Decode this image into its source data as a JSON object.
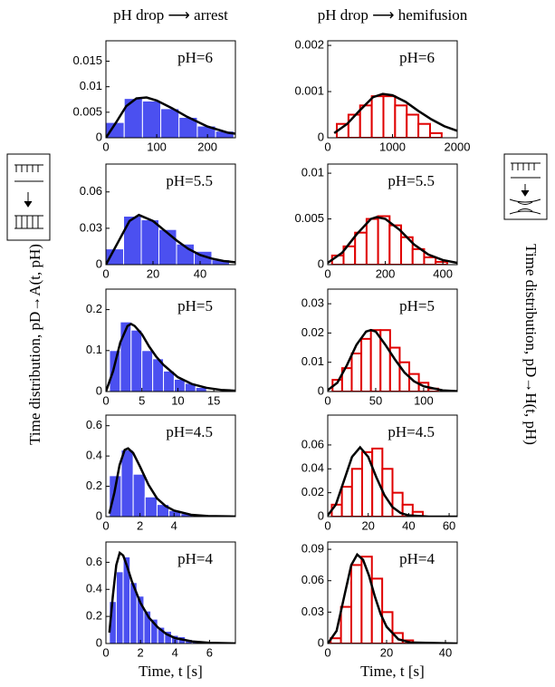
{
  "y_labels": [
    "Time distribution, pD→A(t, pH)",
    "Time distribution, pD→H(t, pH)"
  ],
  "chart_data": [
    {
      "type": "histogram",
      "title": "pH drop ⟶ arrest",
      "label": "pH=6",
      "color": "#4b50f0",
      "edge": "#ffffff",
      "bins": [
        0,
        36,
        72,
        108,
        144,
        180,
        216,
        252
      ],
      "values": [
        0.003,
        0.0077,
        0.0072,
        0.0057,
        0.004,
        0.0023,
        0.0013
      ],
      "fit_x": [
        0,
        20,
        40,
        60,
        80,
        100,
        130,
        160,
        200,
        240,
        255
      ],
      "fit_values": [
        0,
        0.003,
        0.0062,
        0.0077,
        0.0079,
        0.0073,
        0.0058,
        0.0041,
        0.0022,
        0.001,
        0.0008
      ],
      "fit_color": "#000000",
      "xlim": [
        0,
        255
      ],
      "xticks": [
        0,
        100,
        200
      ],
      "ylim": [
        0,
        0.019
      ],
      "yticks": [
        0,
        0.005,
        0.01,
        0.015
      ]
    },
    {
      "type": "histogram",
      "title": "pH drop ⟶ hemifusion",
      "label": "pH=6",
      "color": "#ffffff",
      "edge": "#e00000",
      "bins": [
        140,
        320,
        500,
        680,
        860,
        1040,
        1220,
        1400,
        1580,
        1760
      ],
      "values": [
        0.0003,
        0.0005,
        0.0007,
        0.0009,
        0.0009,
        0.0007,
        0.0005,
        0.0003,
        0.0001
      ],
      "fit_x": [
        100,
        300,
        500,
        700,
        850,
        1000,
        1200,
        1400,
        1600,
        1800,
        2000
      ],
      "fit_values": [
        0.0001,
        0.0003,
        0.0006,
        0.00088,
        0.00095,
        0.00092,
        0.00078,
        0.00058,
        0.0004,
        0.00025,
        0.00015
      ],
      "fit_color": "#000000",
      "xlim": [
        0,
        2000
      ],
      "xticks": [
        0,
        1000,
        2000
      ],
      "ylim": [
        0,
        0.0021
      ],
      "yticks": [
        0,
        0.001,
        0.002
      ]
    },
    {
      "type": "histogram",
      "label": "pH=5.5",
      "color": "#4b50f0",
      "edge": "#ffffff",
      "bins": [
        0,
        7.5,
        15,
        22.5,
        30,
        37.5,
        45,
        52.5
      ],
      "values": [
        0.013,
        0.04,
        0.037,
        0.029,
        0.017,
        0.011,
        0.004
      ],
      "fit_x": [
        0,
        5,
        10,
        14,
        20,
        25,
        30,
        35,
        40,
        45,
        50,
        55
      ],
      "fit_values": [
        0,
        0.018,
        0.036,
        0.041,
        0.036,
        0.028,
        0.02,
        0.013,
        0.008,
        0.005,
        0.003,
        0.002
      ],
      "fit_color": "#000000",
      "xlim": [
        0,
        55
      ],
      "xticks": [
        0,
        20,
        40
      ],
      "ylim": [
        0,
        0.083
      ],
      "yticks": [
        0,
        0.03,
        0.06
      ]
    },
    {
      "type": "histogram",
      "label": "pH=5.5",
      "color": "#ffffff",
      "edge": "#e00000",
      "bins": [
        15,
        55,
        95,
        135,
        175,
        215,
        255,
        295,
        335,
        375,
        415
      ],
      "values": [
        0.001,
        0.002,
        0.0035,
        0.005,
        0.0053,
        0.0043,
        0.003,
        0.0017,
        0.0008,
        0.0003
      ],
      "fit_x": [
        0,
        50,
        100,
        150,
        170,
        200,
        250,
        300,
        350,
        400,
        450
      ],
      "fit_values": [
        0.0002,
        0.0013,
        0.0033,
        0.005,
        0.0052,
        0.005,
        0.0038,
        0.0022,
        0.0011,
        0.0005,
        0.0002
      ],
      "fit_color": "#000000",
      "xlim": [
        0,
        450
      ],
      "xticks": [
        0,
        200,
        400
      ],
      "ylim": [
        0,
        0.011
      ],
      "yticks": [
        0,
        0.005,
        0.01
      ]
    },
    {
      "type": "histogram",
      "label": "pH=5",
      "color": "#4b50f0",
      "edge": "#ffffff",
      "bins": [
        0.5,
        2,
        3.5,
        5,
        6.5,
        8,
        9.5,
        11,
        12.5,
        14
      ],
      "values": [
        0.1,
        0.17,
        0.15,
        0.1,
        0.08,
        0.05,
        0.03,
        0.02,
        0.01
      ],
      "fit_x": [
        0,
        1,
        2,
        3,
        3.5,
        4,
        5,
        6,
        7,
        8,
        10,
        12,
        14,
        16,
        18
      ],
      "fit_values": [
        0,
        0.05,
        0.12,
        0.16,
        0.165,
        0.16,
        0.14,
        0.11,
        0.085,
        0.065,
        0.035,
        0.018,
        0.009,
        0.004,
        0.002
      ],
      "fit_color": "#000000",
      "xlim": [
        0,
        18
      ],
      "xticks": [
        0,
        5,
        10,
        15
      ],
      "ylim": [
        0,
        0.25
      ],
      "yticks": [
        0,
        0.1,
        0.2
      ]
    },
    {
      "type": "histogram",
      "label": "pH=5",
      "color": "#ffffff",
      "edge": "#e00000",
      "bins": [
        5,
        15,
        25,
        35,
        45,
        55,
        65,
        75,
        85,
        95,
        105,
        115
      ],
      "values": [
        0.004,
        0.008,
        0.013,
        0.018,
        0.021,
        0.021,
        0.015,
        0.01,
        0.006,
        0.003,
        0.001
      ],
      "fit_x": [
        0,
        10,
        20,
        30,
        40,
        45,
        50,
        60,
        70,
        80,
        90,
        100,
        120,
        135
      ],
      "fit_values": [
        0.0005,
        0.003,
        0.009,
        0.016,
        0.0205,
        0.021,
        0.0205,
        0.016,
        0.011,
        0.0065,
        0.0035,
        0.0018,
        0.0004,
        0.0001
      ],
      "fit_color": "#000000",
      "xlim": [
        0,
        135
      ],
      "xticks": [
        0,
        50,
        100
      ],
      "ylim": [
        0,
        0.035
      ],
      "yticks": [
        0,
        0.01,
        0.02,
        0.03
      ]
    },
    {
      "type": "histogram",
      "label": "pH=4.5",
      "color": "#4b50f0",
      "edge": "#ffffff",
      "bins": [
        0.2,
        0.9,
        1.6,
        2.3,
        3.0,
        3.7,
        4.4,
        5.1
      ],
      "values": [
        0.27,
        0.44,
        0.28,
        0.13,
        0.08,
        0.04,
        0.02
      ],
      "fit_x": [
        0.2,
        0.5,
        0.8,
        1.1,
        1.3,
        1.6,
        2,
        2.5,
        3,
        3.5,
        4,
        5,
        6,
        7.6
      ],
      "fit_values": [
        0.02,
        0.16,
        0.34,
        0.44,
        0.45,
        0.42,
        0.33,
        0.21,
        0.12,
        0.07,
        0.04,
        0.012,
        0.004,
        0.001
      ],
      "fit_color": "#000000",
      "xlim": [
        0,
        7.6
      ],
      "xticks": [
        0,
        2,
        4
      ],
      "ylim": [
        0,
        0.67
      ],
      "yticks": [
        0,
        0.2,
        0.4,
        0.6
      ]
    },
    {
      "type": "histogram",
      "label": "pH=4.5",
      "color": "#ffffff",
      "edge": "#e00000",
      "bins": [
        2,
        7,
        12,
        17,
        22,
        27,
        32,
        37,
        42,
        47
      ],
      "values": [
        0.01,
        0.025,
        0.04,
        0.054,
        0.057,
        0.04,
        0.02,
        0.01,
        0.004
      ],
      "fit_x": [
        0,
        4,
        8,
        12,
        16,
        20,
        24,
        28,
        32,
        36,
        40,
        50,
        64
      ],
      "fit_values": [
        0.001,
        0.01,
        0.03,
        0.05,
        0.058,
        0.05,
        0.033,
        0.018,
        0.008,
        0.003,
        0.001,
        0,
        0
      ],
      "fit_color": "#000000",
      "xlim": [
        0,
        64
      ],
      "xticks": [
        0,
        20,
        40,
        60
      ],
      "ylim": [
        0,
        0.085
      ],
      "yticks": [
        0,
        0.02,
        0.04,
        0.06
      ]
    },
    {
      "type": "histogram",
      "label": "pH=4",
      "xlabel": "Time, t [s]",
      "color": "#4b50f0",
      "edge": "#ffffff",
      "bins": [
        0.2,
        0.6,
        1.0,
        1.4,
        1.8,
        2.2,
        2.6,
        3.0,
        3.4,
        3.8,
        4.2,
        4.6,
        5.0,
        5.4,
        5.8
      ],
      "values": [
        0.31,
        0.53,
        0.64,
        0.45,
        0.35,
        0.24,
        0.18,
        0.12,
        0.09,
        0.06,
        0.05,
        0.03,
        0.02,
        0.01
      ],
      "fit_x": [
        0.2,
        0.4,
        0.6,
        0.8,
        1,
        1.2,
        1.5,
        2,
        2.5,
        3,
        3.5,
        4,
        5,
        6,
        7.5
      ],
      "fit_values": [
        0.08,
        0.35,
        0.58,
        0.67,
        0.65,
        0.58,
        0.46,
        0.3,
        0.19,
        0.12,
        0.07,
        0.04,
        0.015,
        0.005,
        0.001
      ],
      "fit_color": "#000000",
      "xlim": [
        0,
        7.5
      ],
      "xticks": [
        0,
        2,
        4,
        6
      ],
      "ylim": [
        0,
        0.75
      ],
      "yticks": [
        0,
        0.2,
        0.4,
        0.6
      ]
    },
    {
      "type": "histogram",
      "label": "pH=4",
      "xlabel": "Time, t [s]",
      "color": "#ffffff",
      "edge": "#e00000",
      "bins": [
        1,
        4.5,
        8,
        11.5,
        15,
        18.5,
        22,
        25.5,
        29
      ],
      "values": [
        0.005,
        0.035,
        0.075,
        0.083,
        0.062,
        0.03,
        0.01,
        0.003
      ],
      "fit_x": [
        0,
        3,
        6,
        8,
        10,
        12,
        14,
        16,
        18,
        20,
        24,
        28,
        44
      ],
      "fit_values": [
        0,
        0.012,
        0.05,
        0.075,
        0.085,
        0.08,
        0.065,
        0.045,
        0.028,
        0.016,
        0.004,
        0.001,
        0
      ],
      "fit_color": "#000000",
      "xlim": [
        0,
        44
      ],
      "xticks": [
        0,
        20,
        40
      ],
      "ylim": [
        0,
        0.097
      ],
      "yticks": [
        0,
        0.03,
        0.06,
        0.09
      ]
    }
  ]
}
